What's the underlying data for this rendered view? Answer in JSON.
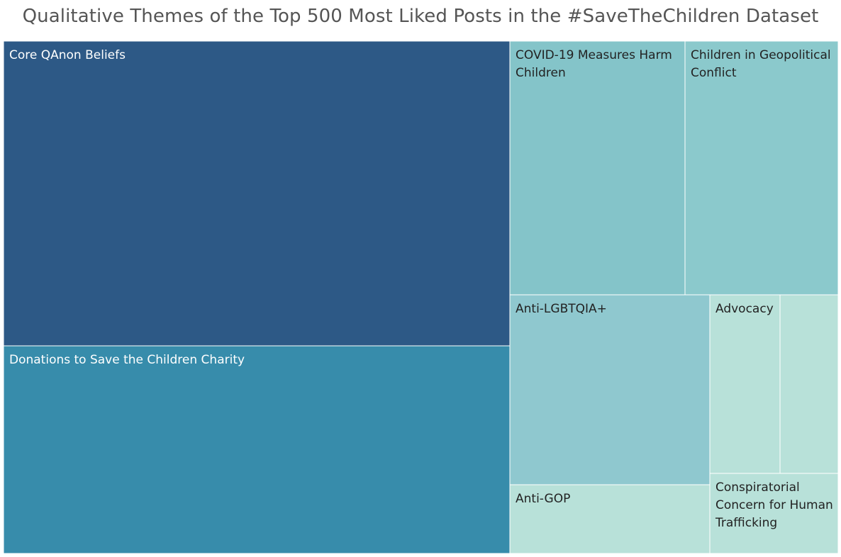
{
  "chart_data": {
    "type": "treemap",
    "title": "Qualitative Themes of the Top 500 Most Liked Posts in the #SaveTheChildren Dataset",
    "items": [
      {
        "label": "Core QAnon Beliefs",
        "color": "#2d5986",
        "label_color": "#ffffff"
      },
      {
        "label": "Donations to Save the Children Charity",
        "color": "#378cab",
        "label_color": "#ffffff"
      },
      {
        "label": "COVID-19 Measures Harm Children",
        "color": "#84c4c9",
        "label_color": "#222222"
      },
      {
        "label": "Children in Geopolitical Conflict",
        "color": "#8bc9cc",
        "label_color": "#222222"
      },
      {
        "label": "Anti-LGBTQIA+",
        "color": "#8fc8cf",
        "label_color": "#222222"
      },
      {
        "label": "Advocacy",
        "color": "#b8e1d9",
        "label_color": "#222222"
      },
      {
        "label": "",
        "color": "#b8e1d9",
        "label_color": "#222222"
      },
      {
        "label": "Anti-GOP",
        "color": "#b8e1d9",
        "label_color": "#222222"
      },
      {
        "label": "Conspiratorial Concern for Human Trafficking",
        "color": "#b8e1d9",
        "label_color": "#222222"
      }
    ]
  }
}
